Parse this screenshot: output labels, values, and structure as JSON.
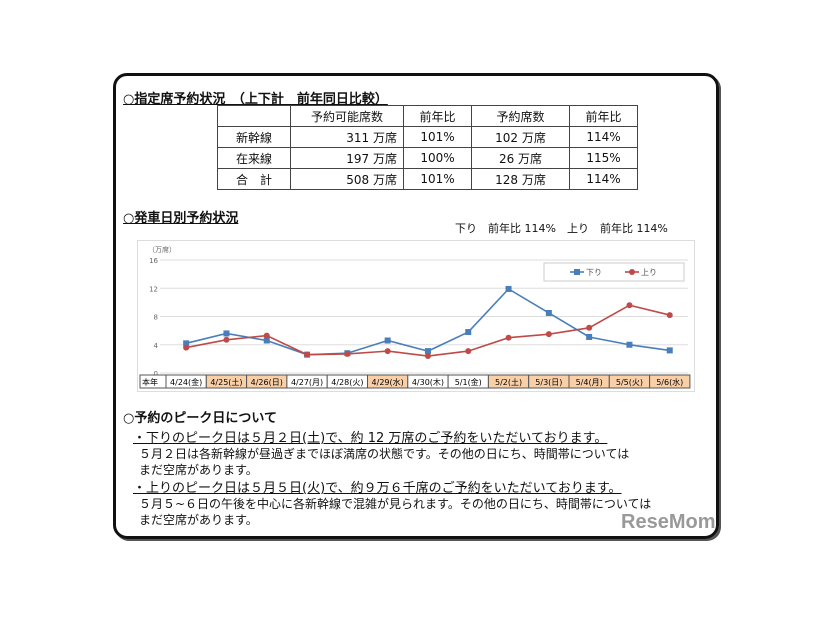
{
  "section1": {
    "title": "○指定席予約状況　（上下計　前年同日比較）",
    "headers": [
      "",
      "予約可能席数",
      "前年比",
      "予約席数",
      "前年比"
    ],
    "rows": [
      [
        "新幹線",
        "311 万席",
        "101%",
        "102 万席",
        "114%"
      ],
      [
        "在来線",
        "197 万席",
        "100%",
        "26 万席",
        "115%"
      ],
      [
        "合　計",
        "508 万席",
        "101%",
        "128 万席",
        "114%"
      ]
    ]
  },
  "section2": {
    "title": "○発車日別予約状況",
    "summary": "下り　前年比 114%　上り　前年比 114%"
  },
  "chart_data": {
    "type": "line",
    "ylabel": "（万席）",
    "ylim": [
      0,
      16
    ],
    "yticks": [
      0,
      4,
      8,
      12,
      16
    ],
    "grid": true,
    "legend": "top-right",
    "row_label": "本年",
    "categories": [
      "4/24(金)",
      "4/25(土)",
      "4/26(日)",
      "4/27(月)",
      "4/28(火)",
      "4/29(水)",
      "4/30(木)",
      "5/1(金)",
      "5/2(土)",
      "5/3(日)",
      "5/4(月)",
      "5/5(火)",
      "5/6(水)"
    ],
    "holiday": [
      false,
      true,
      true,
      false,
      false,
      true,
      false,
      false,
      true,
      true,
      true,
      true,
      true
    ],
    "series": [
      {
        "name": "下り",
        "color": "#4a7ebb",
        "marker": "square",
        "values": [
          4.2,
          5.6,
          4.6,
          2.6,
          2.8,
          4.6,
          3.1,
          5.8,
          11.9,
          8.5,
          5.1,
          4.0,
          3.2
        ]
      },
      {
        "name": "上り",
        "color": "#be4b48",
        "marker": "circle",
        "values": [
          3.6,
          4.7,
          5.3,
          2.6,
          2.7,
          3.1,
          2.4,
          3.1,
          5.0,
          5.5,
          6.4,
          9.6,
          8.2
        ]
      }
    ]
  },
  "section3": {
    "title": "○予約のピーク日について",
    "lines": [
      "・下りのピーク日は５月２日(土)で、約 12 万席のご予約をいただいております。",
      "５月２日は各新幹線が昼過ぎまでほぼ満席の状態です。その他の日にち、時間帯については",
      "まだ空席があります。",
      "・上りのピーク日は５月５日(火)で、約９万６千席のご予約をいただいております。",
      "５月５~６日の午後を中心に各新幹線で混雑が見られます。その他の日にち、時間帯については",
      "まだ空席があります。"
    ]
  },
  "logo": "ReseMom"
}
